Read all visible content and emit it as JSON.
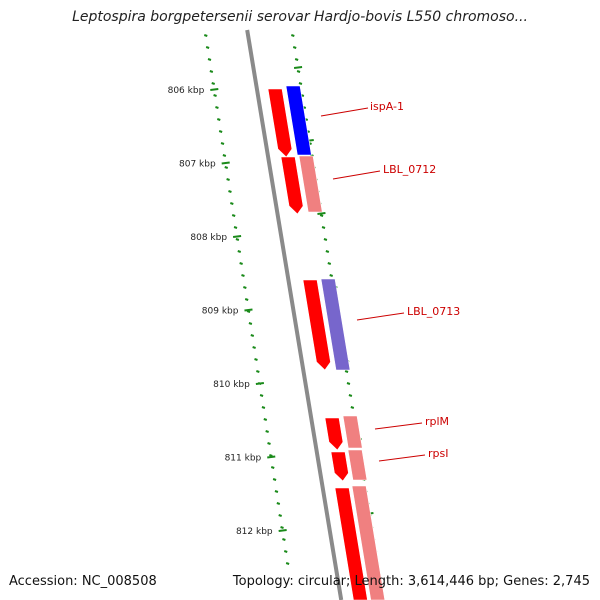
{
  "title": "Leptospira borgpetersenii serovar Hardjo-bovis L550 chromoso...",
  "footer": {
    "accession": "Accession: NC_008508",
    "topology": "Topology: circular; Length: 3,614,446 bp; Genes: 2,745"
  },
  "colors": {
    "backbone": "#8a8a8a",
    "tick": "#1a8a1a",
    "forward_gene": "#ff0000",
    "blue_gene": "#0000ff",
    "purple_gene": "#7766cc",
    "pink_gene": "#f08080",
    "label": "#cc0000"
  },
  "scale_labels": [
    {
      "kbp": 806,
      "text": "806 kbp"
    },
    {
      "kbp": 807,
      "text": "807 kbp"
    },
    {
      "kbp": 808,
      "text": "808 kbp"
    },
    {
      "kbp": 809,
      "text": "809 kbp"
    },
    {
      "kbp": 810,
      "text": "810 kbp"
    },
    {
      "kbp": 811,
      "text": "811 kbp"
    },
    {
      "kbp": 812,
      "text": "812 kbp"
    }
  ],
  "gene_labels": [
    {
      "name": "ispA-1"
    },
    {
      "name": "LBL_0712"
    },
    {
      "name": "LBL_0713"
    },
    {
      "name": "rplM"
    },
    {
      "name": "rpsI"
    }
  ]
}
